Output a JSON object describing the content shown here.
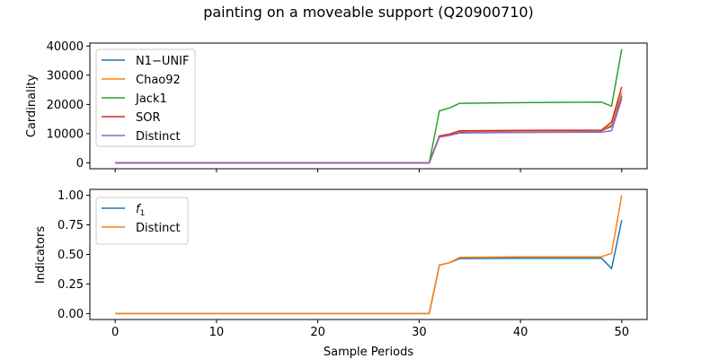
{
  "figure_title": "painting on a moveable support (Q20900710)",
  "colors": {
    "blue": "#1f77b4",
    "orange": "#ff7f0e",
    "green": "#2ca02c",
    "red": "#d62728",
    "purple": "#9467bd"
  },
  "chart_data": [
    {
      "type": "line",
      "ylabel": "Cardinality",
      "xlabel": "",
      "xlim": [
        -2.5,
        52.5
      ],
      "ylim": [
        -2000,
        41000
      ],
      "xticks": [
        0,
        10,
        20,
        30,
        40,
        50
      ],
      "xtick_labels_visible": false,
      "yticks": [
        0,
        10000,
        20000,
        30000,
        40000
      ],
      "ytick_labels": [
        "0",
        "10000",
        "20000",
        "30000",
        "40000"
      ],
      "legend_position": "upper-left",
      "x": [
        0,
        31,
        32,
        33,
        34,
        40,
        48,
        49,
        50
      ],
      "series": [
        {
          "name": "N1−UNIF",
          "color": "#1f77b4",
          "values": [
            0,
            0,
            9000,
            9700,
            10700,
            10900,
            11000,
            12500,
            23000
          ]
        },
        {
          "name": "Chao92",
          "color": "#ff7f0e",
          "values": [
            0,
            0,
            9100,
            9800,
            10800,
            11000,
            11100,
            13000,
            24000
          ]
        },
        {
          "name": "Jack1",
          "color": "#2ca02c",
          "values": [
            0,
            0,
            17800,
            18800,
            20400,
            20600,
            20800,
            19400,
            39000
          ]
        },
        {
          "name": "SOR",
          "color": "#d62728",
          "values": [
            0,
            0,
            9200,
            9900,
            11000,
            11100,
            11200,
            14000,
            26000
          ]
        },
        {
          "name": "Distinct",
          "color": "#9467bd",
          "values": [
            0,
            0,
            8800,
            9400,
            10200,
            10400,
            10500,
            11000,
            22000
          ]
        }
      ]
    },
    {
      "type": "line",
      "ylabel": "Indicators",
      "xlabel": "Sample Periods",
      "xlim": [
        -2.5,
        52.5
      ],
      "ylim": [
        -0.05,
        1.05
      ],
      "xticks": [
        0,
        10,
        20,
        30,
        40,
        50
      ],
      "xtick_labels": [
        "0",
        "10",
        "20",
        "30",
        "40",
        "50"
      ],
      "yticks": [
        0.0,
        0.25,
        0.5,
        0.75,
        1.0
      ],
      "ytick_labels": [
        "0.00",
        "0.25",
        "0.50",
        "0.75",
        "1.00"
      ],
      "legend_position": "upper-left",
      "x": [
        0,
        31,
        32,
        33,
        34,
        40,
        48,
        49,
        50
      ],
      "series": [
        {
          "name": "f1",
          "color": "#1f77b4",
          "values": [
            0,
            0,
            0.41,
            0.43,
            0.465,
            0.468,
            0.468,
            0.38,
            0.79
          ]
        },
        {
          "name": "Distinct",
          "color": "#ff7f0e",
          "values": [
            0,
            0,
            0.41,
            0.43,
            0.475,
            0.48,
            0.48,
            0.51,
            1.0
          ]
        }
      ]
    }
  ]
}
